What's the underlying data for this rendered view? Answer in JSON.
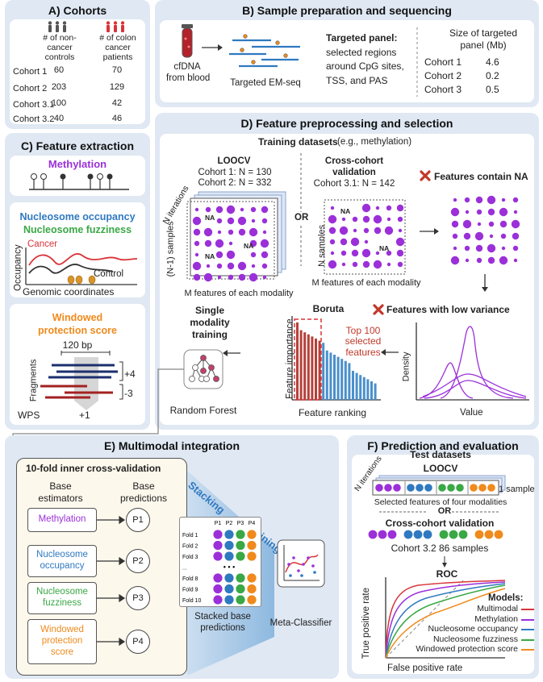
{
  "colors": {
    "purple": "#9b30d9",
    "blue": "#2f79c0",
    "green": "#39a845",
    "orange": "#f08a1c",
    "red": "#d9343a",
    "panel": "#dfe8f3"
  },
  "A": {
    "title": "A) Cohorts",
    "col1": "# of non-\ncancer\ncontrols",
    "col2": "# of colon\ncancer\npatients",
    "rows": [
      {
        "name": "Cohort 1",
        "c": "60",
        "p": "70"
      },
      {
        "name": "Cohort 2",
        "c": "203",
        "p": "129"
      },
      {
        "name": "Cohort 3.1",
        "c": "100",
        "p": "42"
      },
      {
        "name": "Cohort 3.2",
        "c": "40",
        "p": "46"
      }
    ]
  },
  "B": {
    "title": "B) Sample preparation and sequencing",
    "blood": "cfDNA\nfrom blood",
    "emseq": "Targeted EM-seq",
    "panel_label": "Targeted panel:",
    "panel_desc": "selected regions\naround CpG sites,\nTSS, and PAS",
    "size_title": "Size of targeted\npanel (Mb)",
    "sizes": [
      {
        "name": "Cohort 1",
        "v": "4.6"
      },
      {
        "name": "Cohort 2",
        "v": "0.2"
      },
      {
        "name": "Cohort 3",
        "v": "0.5"
      }
    ]
  },
  "C": {
    "title": "C) Feature extraction",
    "meth": "Methylation",
    "nuc1": "Nucleosome occupancy",
    "nuc2": "Nucleosome fuzziness",
    "cancer": "Cancer",
    "control": "Control",
    "occ": "Occupancy",
    "genomic": "Genomic coordinates",
    "wps_title": "Windowed\nprotection score",
    "bp": "120 bp",
    "fragments": "Fragments",
    "p4": "+4",
    "m3": "-3",
    "wps": "WPS",
    "p1": "+1"
  },
  "D": {
    "title": "D) Feature preprocessing and selection",
    "training": "Training datasets",
    "training_note": "(e.g., methylation)",
    "loocv": "LOOCV",
    "loocv_c1": "Cohort 1: N = 130",
    "loocv_c2": "Cohort 2: N = 332",
    "niter": "N iterations",
    "nm1": "(N-1) samples",
    "mfeat": "M features of each modality",
    "or": "OR",
    "cc": "Cross-cohort\nvalidation",
    "cc_c": "Cohort 3.1: N = 142",
    "nsamples": "N samples",
    "na": "NA",
    "na_note": "Features contain NA",
    "lowvar": "Features with low variance",
    "density": "Density",
    "value": "Value",
    "boruta": "Boruta",
    "fimp": "Feature importance",
    "frank": "Feature ranking",
    "top100": "Top 100\nselected\nfeatures",
    "single": "Single\nmodality\ntraining",
    "rf": "Random Forest"
  },
  "E": {
    "title": "E) Multimodal integration",
    "inner": "10-fold inner cross-validation",
    "base_est": "Base\nestimators",
    "base_pred": "Base\npredictions",
    "estimators": [
      "Methylation",
      "Nucleosome\noccupancy",
      "Nucleosome\nfuzziness",
      "Windowed\nprotection\nscore"
    ],
    "preds": [
      "P1",
      "P2",
      "P3",
      "P4"
    ],
    "stacking": "Stacking",
    "training": "Training",
    "cols": [
      "P1",
      "P2",
      "P3",
      "P4"
    ],
    "folds": [
      "Fold 1",
      "Fold 2",
      "Fold 3",
      "...",
      "Fold 8",
      "Fold 9",
      "Fold 10"
    ],
    "dots": "• • •",
    "stacked": "Stacked base\npredictions",
    "meta": "Meta-Classifier"
  },
  "F": {
    "title": "F) Prediction and evaluation",
    "test": "Test datasets",
    "loocv": "LOOCV",
    "niter": "N iterations",
    "one": "1 sample",
    "sel": "Selected features of four modalities",
    "or": "OR",
    "cc": "Cross-cohort validation",
    "cc_c": "Cohort 3.2 86 samples",
    "roc": "ROC",
    "tpr": "True positive rate",
    "fpr": "False positive rate",
    "models_title": "Models:",
    "models": [
      {
        "name": "Multimodal",
        "color": "#d9343a"
      },
      {
        "name": "Methylation",
        "color": "#9b30d9"
      },
      {
        "name": "Nucleosome occupancy",
        "color": "#2f79c0"
      },
      {
        "name": "Nucleosome fuzziness",
        "color": "#39a845"
      },
      {
        "name": "Windowed protection score",
        "color": "#f08a1c"
      }
    ]
  }
}
